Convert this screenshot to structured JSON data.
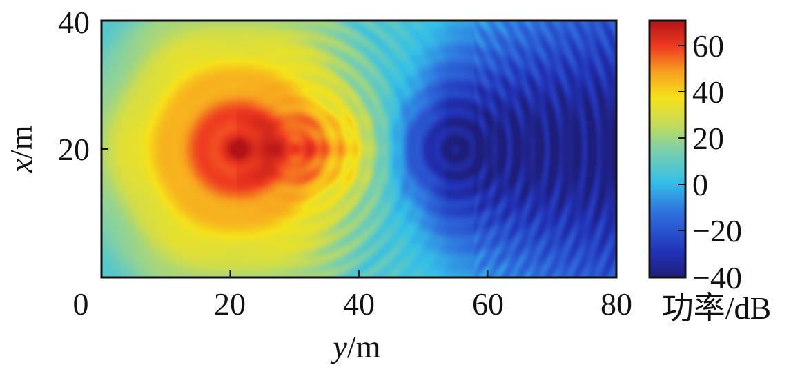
{
  "chart_data": {
    "type": "heatmap",
    "xlabel": {
      "var": "y",
      "unit": "/m"
    },
    "ylabel": {
      "var": "x",
      "unit": "/m"
    },
    "xlim": [
      0,
      80
    ],
    "ylim": [
      0,
      40
    ],
    "xticks": [
      "0",
      "20",
      "40",
      "60",
      "80"
    ],
    "yticks": [
      "20",
      "40"
    ],
    "colorbar": {
      "label": "功率/dB",
      "range": [
        -40,
        70
      ],
      "ticks": [
        "60",
        "40",
        "20",
        "0",
        "−20",
        "−40"
      ],
      "colormap": "jet"
    },
    "field": {
      "description_values": {
        "source_center": [
          21,
          20
        ],
        "source_peak_db": 68,
        "shadow_center": [
          55,
          20
        ],
        "shadow_min_db": -38,
        "background_db": 8
      }
    },
    "grid": false
  },
  "colors": {
    "axis": "#111111",
    "jet_stops": [
      "#00008f",
      "#0000ff",
      "#00ffff",
      "#ffff00",
      "#ff0000",
      "#800000"
    ]
  }
}
